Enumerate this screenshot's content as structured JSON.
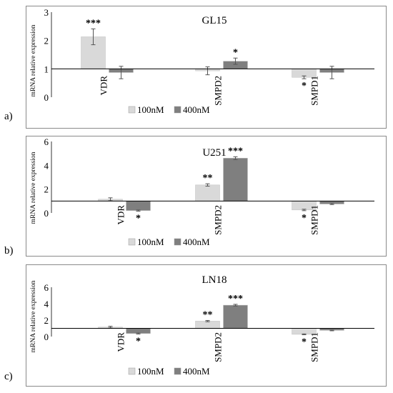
{
  "chart_data": [
    {
      "panel_label": "a)",
      "type": "bar",
      "title": "GL15",
      "ylabel": "mRNA relative expression",
      "ylim": [
        0,
        3
      ],
      "yticks": [
        "0",
        "1",
        "2",
        "3"
      ],
      "categories": [
        "VDR",
        "SMPD2",
        "SMPD1"
      ],
      "baseline": 1,
      "series": [
        {
          "name": "100nM",
          "color": "#d9d9d9",
          "values": [
            2.13,
            0.93,
            0.7
          ],
          "errors": [
            0.28,
            0.14,
            0.05
          ],
          "significance": [
            "***",
            "",
            "*"
          ]
        },
        {
          "name": "400nM",
          "color": "#7f7f7f",
          "values": [
            0.87,
            1.27,
            0.87
          ],
          "errors": [
            0.22,
            0.11,
            0.22
          ],
          "significance": [
            "",
            "*",
            ""
          ]
        }
      ],
      "legend": "bottom-center"
    },
    {
      "panel_label": "b)",
      "type": "bar",
      "title": "U251",
      "ylabel": "mRNA relative expression",
      "ylim": [
        0,
        6
      ],
      "yticks": [
        "0",
        "2",
        "4",
        "6"
      ],
      "categories": [
        "VDR",
        "SMPD2",
        "SMPD1"
      ],
      "baseline": 1,
      "series": [
        {
          "name": "100nM",
          "color": "#d9d9d9",
          "values": [
            1.15,
            2.35,
            0.25
          ],
          "errors": [
            0.12,
            0.1,
            0.06
          ],
          "significance": [
            "",
            "**",
            "*"
          ]
        },
        {
          "name": "400nM",
          "color": "#7f7f7f",
          "values": [
            0.2,
            4.6,
            0.75
          ],
          "errors": [
            0.05,
            0.12,
            0.05
          ],
          "significance": [
            "*",
            "***",
            ""
          ]
        }
      ],
      "legend": "bottom-center"
    },
    {
      "panel_label": "c)",
      "type": "bar",
      "title": "LN18",
      "ylabel": "mRNA relative expression",
      "ylim": [
        0,
        6
      ],
      "yticks": [
        "0",
        "2",
        "4",
        "6"
      ],
      "categories": [
        "VDR",
        "SMPD2",
        "SMPD1"
      ],
      "baseline": 1,
      "series": [
        {
          "name": "100nM",
          "color": "#d9d9d9",
          "values": [
            1.15,
            1.88,
            0.27
          ],
          "errors": [
            0.1,
            0.08,
            0.05
          ],
          "significance": [
            "",
            "**",
            "*"
          ]
        },
        {
          "name": "400nM",
          "color": "#7f7f7f",
          "values": [
            0.37,
            3.82,
            0.75
          ],
          "errors": [
            0.06,
            0.1,
            0.05
          ],
          "significance": [
            "*",
            "***",
            ""
          ]
        }
      ],
      "legend": "bottom-center"
    }
  ]
}
